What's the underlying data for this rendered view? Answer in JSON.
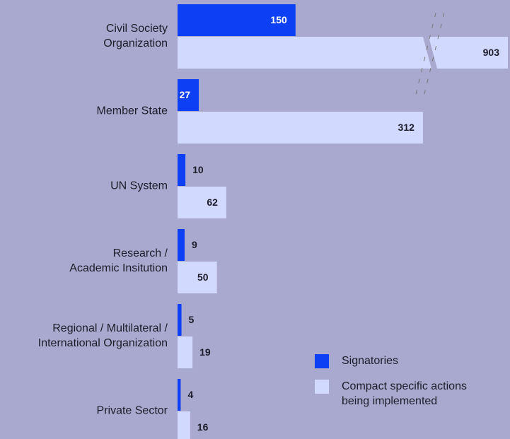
{
  "chart_data": {
    "type": "bar",
    "orientation": "horizontal",
    "categories": [
      "Civil Society\nOrganization",
      "Member State",
      "UN System",
      "Research /\nAcademic Insitution",
      "Regional / Multilateral /\nInternational Organization",
      "Private Sector"
    ],
    "series": [
      {
        "name": "Signatories",
        "color": "#0d3ff5",
        "values": [
          150,
          27,
          10,
          9,
          5,
          4
        ]
      },
      {
        "name": "Compact specific actions\nbeing implemented",
        "color": "#d2d9ff",
        "values": [
          903,
          312,
          62,
          50,
          19,
          16
        ]
      }
    ],
    "xlim": [
      0,
      420
    ],
    "axis_break": true,
    "legend": "lower right"
  }
}
